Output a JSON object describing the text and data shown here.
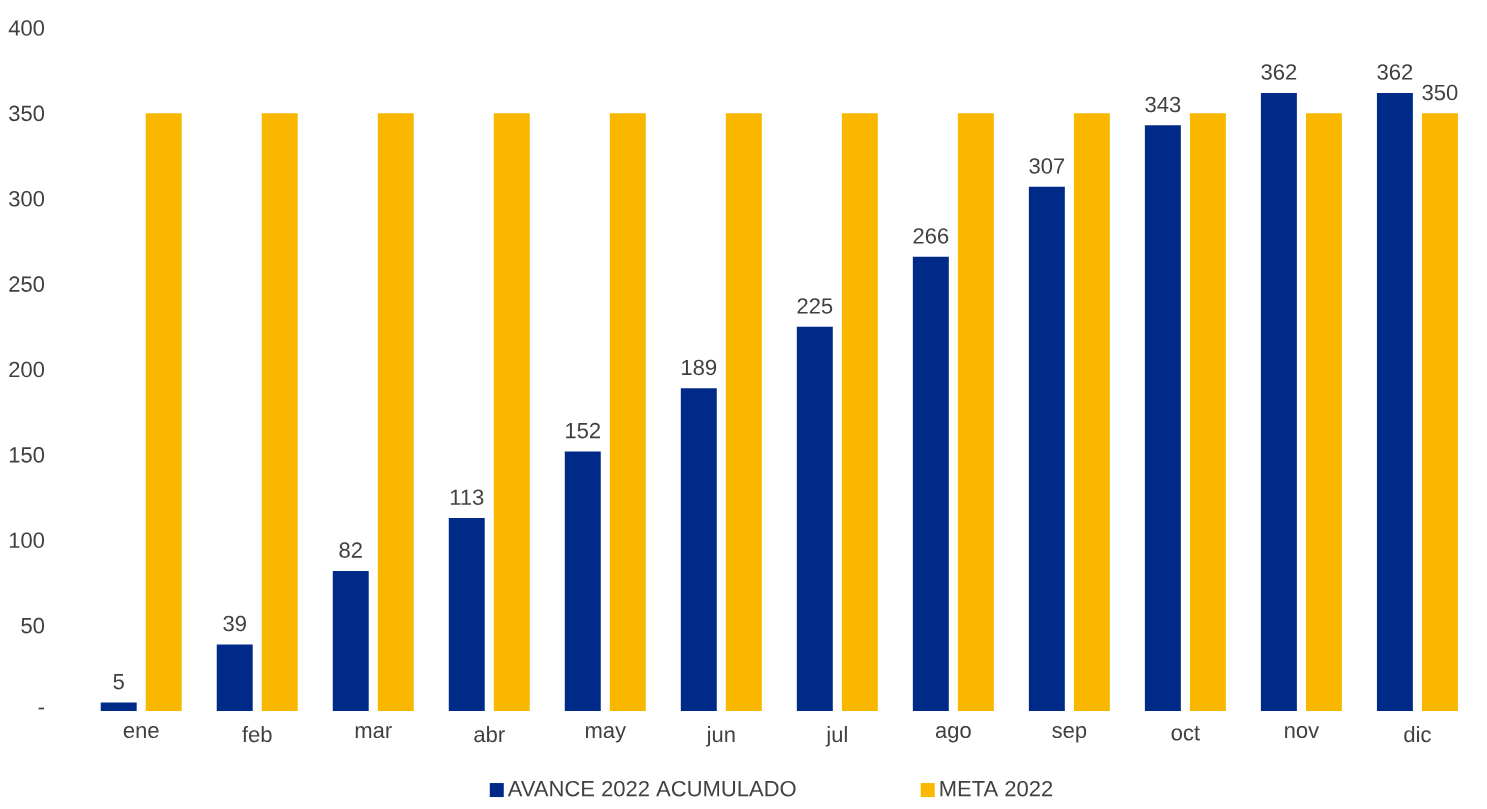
{
  "chart_data": {
    "type": "bar",
    "categories": [
      "ene",
      "feb",
      "mar",
      "abr",
      "may",
      "jun",
      "jul",
      "ago",
      "sep",
      "oct",
      "nov",
      "dic"
    ],
    "series": [
      {
        "name": "AVANCE 2022 ACUMULADO",
        "color": "#002a87",
        "values": [
          5,
          39,
          82,
          113,
          152,
          189,
          225,
          266,
          307,
          343,
          362,
          362
        ],
        "value_labels": [
          "5",
          "39",
          "82",
          "113",
          "152",
          "189",
          "225",
          "266",
          "307",
          "343",
          "362",
          "362"
        ]
      },
      {
        "name": "META 2022",
        "color": "#f9b700",
        "values": [
          350,
          350,
          350,
          350,
          350,
          350,
          350,
          350,
          350,
          350,
          350,
          350
        ],
        "value_labels": [
          null,
          null,
          null,
          null,
          null,
          null,
          null,
          null,
          null,
          null,
          null,
          "350"
        ]
      }
    ],
    "ylim": [
      0,
      400
    ],
    "yticks": [
      {
        "value": 0,
        "label": "-"
      },
      50,
      100,
      150,
      200,
      250,
      300,
      350,
      400
    ],
    "legend": "bottom"
  }
}
